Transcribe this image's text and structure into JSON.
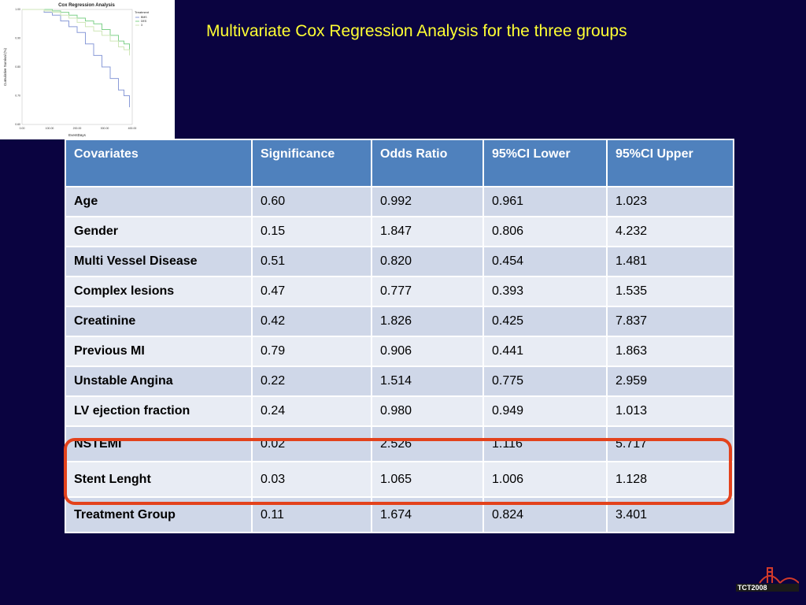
{
  "slide": {
    "title": "Multivariate Cox Regression Analysis for the three groups"
  },
  "thumbnail_chart": {
    "chart_data": {
      "type": "line",
      "title": "Cox Regression Analysis",
      "xlabel": "EventDays",
      "ylabel": "Cumulative Survival (%)",
      "xticks": [
        "0.00",
        "100.00",
        "200.00",
        "300.00",
        "400.00"
      ],
      "yticks": [
        "0.60",
        "0.70",
        "0.80",
        "0.90",
        "1.00"
      ],
      "xlim": [
        0,
        400
      ],
      "ylim": [
        0.6,
        1.0
      ],
      "legend_title": "Treatment",
      "legend_position": "top-right",
      "series": [
        {
          "name": "BMS",
          "color": "#8a9bd8",
          "x": [
            0,
            50,
            80,
            110,
            140,
            170,
            200,
            230,
            260,
            290,
            320,
            350,
            370,
            390
          ],
          "y": [
            1.0,
            1.0,
            0.99,
            0.98,
            0.96,
            0.94,
            0.92,
            0.88,
            0.84,
            0.8,
            0.76,
            0.72,
            0.7,
            0.66
          ]
        },
        {
          "name": "DES",
          "color": "#7fd08a",
          "x": [
            0,
            50,
            80,
            110,
            140,
            170,
            200,
            230,
            260,
            290,
            320,
            350,
            370,
            390
          ],
          "y": [
            1.0,
            1.0,
            1.0,
            0.995,
            0.99,
            0.98,
            0.97,
            0.96,
            0.95,
            0.93,
            0.91,
            0.89,
            0.88,
            0.86
          ]
        },
        {
          "name": "3",
          "color": "#cfe6b8",
          "x": [
            0,
            50,
            80,
            110,
            140,
            170,
            200,
            230,
            260,
            290,
            320,
            350,
            370,
            390
          ],
          "y": [
            1.0,
            1.0,
            0.995,
            0.99,
            0.98,
            0.97,
            0.955,
            0.94,
            0.925,
            0.91,
            0.89,
            0.87,
            0.86,
            0.84
          ]
        }
      ]
    }
  },
  "table": {
    "headers": [
      "Covariates",
      "Significance",
      "Odds Ratio",
      "95%CI Lower",
      "95%CI Upper"
    ],
    "rows": [
      [
        "Age",
        "0.60",
        "0.992",
        "0.961",
        "1.023"
      ],
      [
        "Gender",
        "0.15",
        "1.847",
        "0.806",
        "4.232"
      ],
      [
        "Multi Vessel Disease",
        "0.51",
        "0.820",
        "0.454",
        "1.481"
      ],
      [
        "Complex lesions",
        "0.47",
        "0.777",
        "0.393",
        "1.535"
      ],
      [
        "Creatinine",
        "0.42",
        "1.826",
        "0.425",
        "7.837"
      ],
      [
        "Previous MI",
        "0.79",
        "0.906",
        "0.441",
        "1.863"
      ],
      [
        "Unstable Angina",
        "0.22",
        "1.514",
        "0.775",
        "2.959"
      ],
      [
        "LV ejection fraction",
        "0.24",
        "0.980",
        "0.949",
        "1.013"
      ],
      [
        "NSTEMI",
        "0.02",
        "2.526",
        "1.116",
        "5.717"
      ],
      [
        "Stent Lenght",
        "0.03",
        "1.065",
        "1.006",
        "1.128"
      ],
      [
        "Treatment Group",
        "0.11",
        "1.674",
        "0.824",
        "3.401"
      ]
    ],
    "highlighted_rows": [
      "NSTEMI",
      "Stent Lenght"
    ],
    "highlight_color": "#e3421c"
  },
  "logo": {
    "text": "TCT2008",
    "icon": "bridge-icon"
  }
}
